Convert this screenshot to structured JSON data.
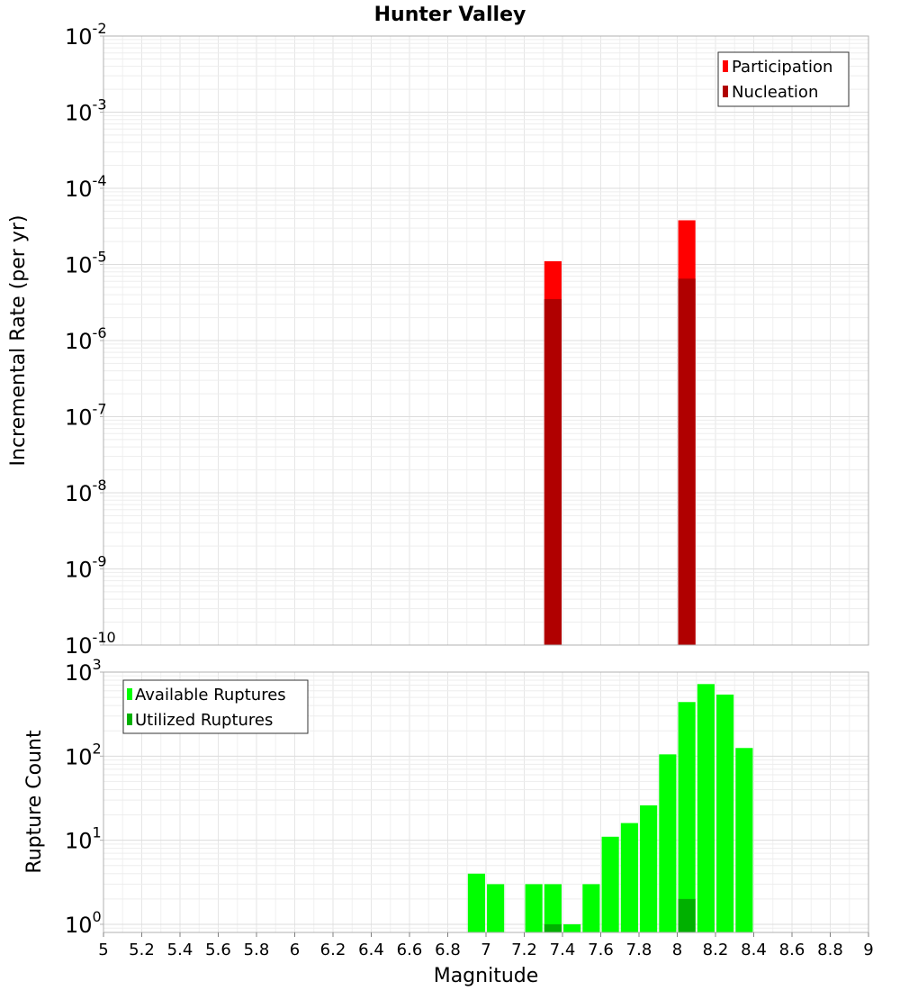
{
  "chart_data": [
    {
      "type": "bar",
      "title": "Hunter Valley",
      "ylabel": "Incremental Rate (per yr)",
      "yscale": "log",
      "ylim": [
        1e-10,
        0.01
      ],
      "ytick_exponents": [
        "-10",
        "-9",
        "-8",
        "-7",
        "-6",
        "-5",
        "-4",
        "-3",
        "-2"
      ],
      "ytick_base": "10",
      "xlim": [
        5,
        9
      ],
      "bar_width": 0.09,
      "legend_position": "top-right",
      "grid": true,
      "colors": {
        "Participation": "#ff0000",
        "Nucleation": "#b00000"
      },
      "series": [
        {
          "name": "Participation",
          "x": [
            7.35,
            8.05
          ],
          "values": [
            1.1e-05,
            3.8e-05
          ]
        },
        {
          "name": "Nucleation",
          "x": [
            7.35,
            8.05
          ],
          "values": [
            3.5e-06,
            6.5e-06
          ]
        }
      ]
    },
    {
      "type": "bar",
      "ylabel": "Rupture Count",
      "xlabel": "Magnitude",
      "yscale": "log",
      "ylim": [
        0.8,
        1000
      ],
      "ytick_exponents": [
        "0",
        "1",
        "2",
        "3"
      ],
      "ytick_base": "10",
      "xlim": [
        5,
        9
      ],
      "xticks": [
        "5",
        "5.2",
        "5.4",
        "5.6",
        "5.8",
        "6",
        "6.2",
        "6.4",
        "6.6",
        "6.8",
        "7",
        "7.2",
        "7.4",
        "7.6",
        "7.8",
        "8",
        "8.2",
        "8.4",
        "8.6",
        "8.8",
        "9"
      ],
      "bar_width": 0.09,
      "legend_position": "top-left",
      "grid": true,
      "colors": {
        "Available Ruptures": "#00ff00",
        "Utilized Ruptures": "#00b000"
      },
      "series": [
        {
          "name": "Available Ruptures",
          "x": [
            6.95,
            7.05,
            7.25,
            7.35,
            7.45,
            7.55,
            7.65,
            7.75,
            7.85,
            7.95,
            8.05,
            8.15,
            8.25,
            8.35
          ],
          "values": [
            4,
            3,
            3,
            3,
            1,
            3,
            11,
            16,
            26,
            105,
            440,
            720,
            540,
            125
          ]
        },
        {
          "name": "Utilized Ruptures",
          "x": [
            7.35,
            8.05
          ],
          "values": [
            1,
            2
          ]
        }
      ]
    }
  ]
}
